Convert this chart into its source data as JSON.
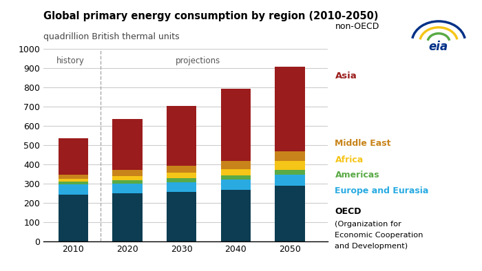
{
  "title_line1": "Global primary energy consumption by region (2010-2050)",
  "title_line2": "quadrillion British thermal units",
  "years": [
    2010,
    2020,
    2030,
    2040,
    2050
  ],
  "history_label": "history",
  "projections_label": "projections",
  "segments": [
    {
      "label": "OECD",
      "color": "#0d3d52",
      "values": [
        242,
        250,
        257,
        268,
        290
      ]
    },
    {
      "label": "Europe and Eurasia",
      "color": "#29abe2",
      "values": [
        52,
        50,
        50,
        52,
        55
      ]
    },
    {
      "label": "Americas",
      "color": "#5aaa46",
      "values": [
        15,
        18,
        20,
        22,
        26
      ]
    },
    {
      "label": "Africa",
      "color": "#f5c518",
      "values": [
        15,
        20,
        28,
        32,
        45
      ]
    },
    {
      "label": "Middle East",
      "color": "#c8841a",
      "values": [
        22,
        32,
        38,
        42,
        50
      ]
    },
    {
      "label": "Asia",
      "color": "#9b1c1c",
      "values": [
        188,
        265,
        310,
        375,
        440
      ]
    }
  ],
  "non_oecd_label": "non-OECD",
  "ylim": [
    0,
    1000
  ],
  "background_color": "#ffffff",
  "grid_color": "#cccccc",
  "label_colors": {
    "non_oecd": "#000000",
    "Asia": "#9b1c1c",
    "Middle East": "#c8841a",
    "Africa": "#f5c518",
    "Americas": "#5aaa46",
    "Europe and Eurasia": "#29abe2",
    "OECD": "#000000"
  }
}
